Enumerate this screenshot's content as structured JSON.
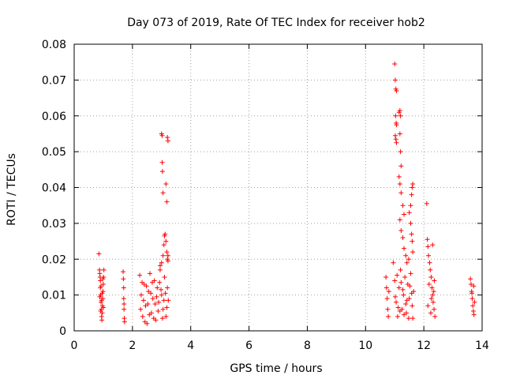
{
  "chart_data": {
    "type": "scatter",
    "title": "Day 073 of 2019, Rate Of TEC Index for receiver hob2",
    "xlabel": "GPS time / hours",
    "ylabel": "ROTI / TECUs",
    "xlim": [
      0,
      14
    ],
    "ylim": [
      0,
      0.08
    ],
    "x_ticks": [
      "0",
      "2",
      "4",
      "6",
      "8",
      "10",
      "12",
      "14"
    ],
    "y_ticks": [
      "0",
      "0.01",
      "0.02",
      "0.03",
      "0.04",
      "0.05",
      "0.06",
      "0.07",
      "0.08"
    ],
    "grid": true,
    "marker": "+",
    "series_color": "#ff0000",
    "series": [
      {
        "name": "ROTI",
        "points": [
          [
            0.85,
            0.0215
          ],
          [
            0.87,
            0.017
          ],
          [
            0.88,
            0.016
          ],
          [
            0.89,
            0.015
          ],
          [
            0.9,
            0.014
          ],
          [
            0.9,
            0.012
          ],
          [
            0.91,
            0.01
          ],
          [
            0.92,
            0.008
          ],
          [
            0.93,
            0.006
          ],
          [
            0.94,
            0.004
          ],
          [
            0.95,
            0.003
          ],
          [
            0.96,
            0.005
          ],
          [
            0.97,
            0.007
          ],
          [
            0.98,
            0.009
          ],
          [
            0.99,
            0.011
          ],
          [
            1.0,
            0.013
          ],
          [
            1.01,
            0.015
          ],
          [
            1.02,
            0.017
          ],
          [
            0.88,
            0.0095
          ],
          [
            0.92,
            0.0125
          ],
          [
            0.96,
            0.0105
          ],
          [
            1.0,
            0.0065
          ],
          [
            0.94,
            0.0085
          ],
          [
            0.98,
            0.0145
          ],
          [
            0.91,
            0.0055
          ],
          [
            1.68,
            0.0165
          ],
          [
            1.69,
            0.0145
          ],
          [
            1.7,
            0.012
          ],
          [
            1.7,
            0.009
          ],
          [
            1.71,
            0.006
          ],
          [
            1.72,
            0.0035
          ],
          [
            1.73,
            0.0025
          ],
          [
            1.71,
            0.0075
          ],
          [
            2.25,
            0.0155
          ],
          [
            2.3,
            0.01
          ],
          [
            2.35,
            0.004
          ],
          [
            2.4,
            0.013
          ],
          [
            2.45,
            0.007
          ],
          [
            2.5,
            0.002
          ],
          [
            2.55,
            0.011
          ],
          [
            2.6,
            0.016
          ],
          [
            2.65,
            0.005
          ],
          [
            2.7,
            0.009
          ],
          [
            2.75,
            0.014
          ],
          [
            2.8,
            0.003
          ],
          [
            2.85,
            0.012
          ],
          [
            2.9,
            0.008
          ],
          [
            2.95,
            0.017
          ],
          [
            3.0,
            0.01
          ],
          [
            3.05,
            0.006
          ],
          [
            3.1,
            0.015
          ],
          [
            3.15,
            0.004
          ],
          [
            3.2,
            0.012
          ],
          [
            2.28,
            0.006
          ],
          [
            2.38,
            0.0085
          ],
          [
            2.48,
            0.0125
          ],
          [
            2.58,
            0.0045
          ],
          [
            2.68,
            0.0135
          ],
          [
            2.78,
            0.0075
          ],
          [
            2.88,
            0.0055
          ],
          [
            2.98,
            0.0115
          ],
          [
            3.08,
            0.0085
          ],
          [
            3.18,
            0.0065
          ],
          [
            2.33,
            0.0135
          ],
          [
            2.43,
            0.0025
          ],
          [
            2.53,
            0.0075
          ],
          [
            2.63,
            0.0105
          ],
          [
            2.73,
            0.0035
          ],
          [
            2.83,
            0.0095
          ],
          [
            2.93,
            0.0135
          ],
          [
            3.03,
            0.0035
          ],
          [
            3.13,
            0.0105
          ],
          [
            3.23,
            0.0085
          ],
          [
            2.95,
            0.0182
          ],
          [
            3.0,
            0.019
          ],
          [
            3.05,
            0.021
          ],
          [
            3.08,
            0.024
          ],
          [
            3.1,
            0.0265
          ],
          [
            3.12,
            0.027
          ],
          [
            3.15,
            0.025
          ],
          [
            3.18,
            0.022
          ],
          [
            3.2,
            0.02
          ],
          [
            3.22,
            0.0195
          ],
          [
            3.22,
            0.021
          ],
          [
            3.0,
            0.055
          ],
          [
            3.02,
            0.0545
          ],
          [
            3.2,
            0.054
          ],
          [
            3.22,
            0.053
          ],
          [
            3.02,
            0.047
          ],
          [
            3.03,
            0.0445
          ],
          [
            3.05,
            0.0385
          ],
          [
            3.15,
            0.041
          ],
          [
            3.18,
            0.036
          ],
          [
            10.7,
            0.015
          ],
          [
            10.72,
            0.012
          ],
          [
            10.74,
            0.009
          ],
          [
            10.76,
            0.006
          ],
          [
            10.78,
            0.004
          ],
          [
            10.8,
            0.011
          ],
          [
            10.95,
            0.019
          ],
          [
            11.0,
            0.014
          ],
          [
            11.05,
            0.008
          ],
          [
            11.1,
            0.004
          ],
          [
            11.15,
            0.012
          ],
          [
            11.2,
            0.017
          ],
          [
            11.25,
            0.006
          ],
          [
            11.3,
            0.01
          ],
          [
            11.35,
            0.015
          ],
          [
            11.4,
            0.005
          ],
          [
            11.45,
            0.013
          ],
          [
            11.5,
            0.009
          ],
          [
            11.55,
            0.016
          ],
          [
            11.6,
            0.007
          ],
          [
            11.65,
            0.011
          ],
          [
            11.02,
            0.0095
          ],
          [
            11.12,
            0.0065
          ],
          [
            11.22,
            0.0135
          ],
          [
            11.32,
            0.0045
          ],
          [
            11.42,
            0.0085
          ],
          [
            11.52,
            0.0125
          ],
          [
            11.62,
            0.0035
          ],
          [
            11.08,
            0.0155
          ],
          [
            11.18,
            0.0055
          ],
          [
            11.28,
            0.0115
          ],
          [
            11.38,
            0.0075
          ],
          [
            11.48,
            0.0035
          ],
          [
            11.58,
            0.0105
          ],
          [
            11.0,
            0.0745
          ],
          [
            11.02,
            0.07
          ],
          [
            11.04,
            0.0675
          ],
          [
            11.06,
            0.067
          ],
          [
            11.03,
            0.06
          ],
          [
            11.05,
            0.058
          ],
          [
            11.06,
            0.0575
          ],
          [
            11.02,
            0.0545
          ],
          [
            11.04,
            0.0535
          ],
          [
            11.06,
            0.0525
          ],
          [
            11.15,
            0.061
          ],
          [
            11.18,
            0.0615
          ],
          [
            11.2,
            0.06
          ],
          [
            11.18,
            0.055
          ],
          [
            11.2,
            0.05
          ],
          [
            11.22,
            0.046
          ],
          [
            11.15,
            0.043
          ],
          [
            11.18,
            0.041
          ],
          [
            11.22,
            0.0385
          ],
          [
            11.28,
            0.035
          ],
          [
            11.32,
            0.0325
          ],
          [
            11.18,
            0.031
          ],
          [
            11.22,
            0.028
          ],
          [
            11.28,
            0.026
          ],
          [
            11.32,
            0.023
          ],
          [
            11.38,
            0.021
          ],
          [
            11.42,
            0.019
          ],
          [
            11.48,
            0.02
          ],
          [
            11.5,
            0.033
          ],
          [
            11.55,
            0.035
          ],
          [
            11.58,
            0.038
          ],
          [
            11.6,
            0.04
          ],
          [
            11.62,
            0.041
          ],
          [
            11.55,
            0.03
          ],
          [
            11.58,
            0.027
          ],
          [
            11.6,
            0.025
          ],
          [
            11.62,
            0.022
          ],
          [
            12.1,
            0.0355
          ],
          [
            12.12,
            0.0255
          ],
          [
            12.14,
            0.0235
          ],
          [
            12.16,
            0.021
          ],
          [
            12.3,
            0.024
          ],
          [
            12.2,
            0.019
          ],
          [
            12.22,
            0.017
          ],
          [
            12.25,
            0.015
          ],
          [
            12.28,
            0.012
          ],
          [
            12.3,
            0.01
          ],
          [
            12.32,
            0.008
          ],
          [
            12.35,
            0.006
          ],
          [
            12.38,
            0.004
          ],
          [
            12.18,
            0.013
          ],
          [
            12.26,
            0.009
          ],
          [
            12.34,
            0.011
          ],
          [
            12.14,
            0.007
          ],
          [
            12.24,
            0.005
          ],
          [
            12.36,
            0.014
          ],
          [
            13.6,
            0.0145
          ],
          [
            13.62,
            0.013
          ],
          [
            13.64,
            0.011
          ],
          [
            13.66,
            0.009
          ],
          [
            13.68,
            0.007
          ],
          [
            13.7,
            0.0055
          ],
          [
            13.72,
            0.0045
          ],
          [
            13.74,
            0.008
          ],
          [
            13.65,
            0.0105
          ],
          [
            13.71,
            0.0125
          ]
        ]
      }
    ]
  }
}
